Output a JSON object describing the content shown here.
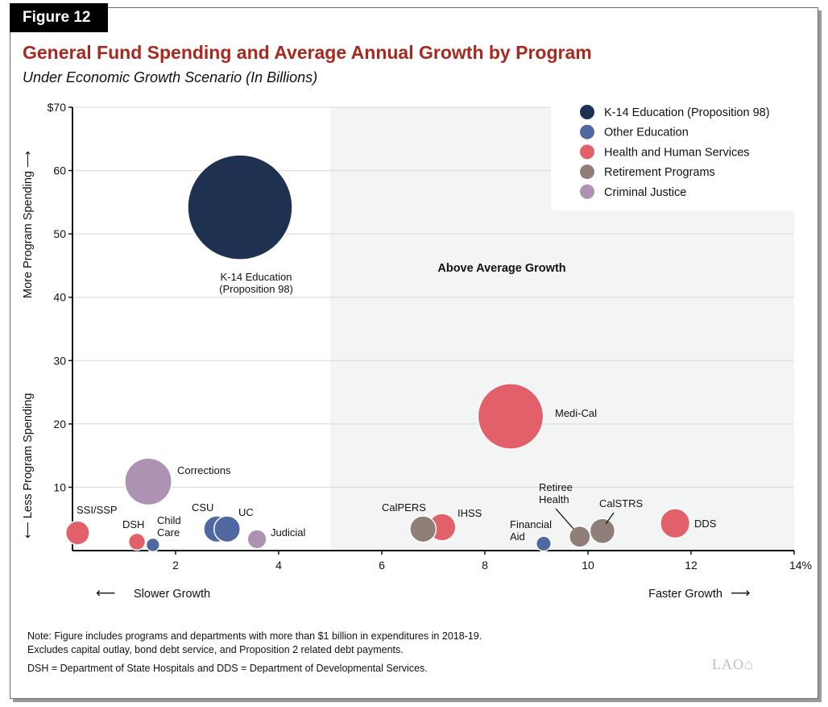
{
  "figure_tag": "Figure 12",
  "chart_data": {
    "type": "bubble",
    "title": "General Fund Spending and Average Annual Growth by Program",
    "subtitle": "Under Economic Growth Scenario (In Billions)",
    "xlim": [
      0,
      14
    ],
    "ylim": [
      0,
      70
    ],
    "x_ticks": [
      "2",
      "4",
      "6",
      "8",
      "10",
      "12",
      "14%"
    ],
    "x_tick_values": [
      2,
      4,
      6,
      8,
      10,
      12,
      14
    ],
    "y_ticks": [
      "10",
      "20",
      "30",
      "40",
      "50",
      "60",
      "$70"
    ],
    "y_tick_values": [
      10,
      20,
      30,
      40,
      50,
      60,
      70
    ],
    "x_direction_left": "Slower Growth",
    "x_direction_right": "Faster Growth",
    "y_direction_up": "More Program Spending",
    "y_direction_down": "Less Program Spending",
    "shaded_region": {
      "x_from": 5,
      "label": "Above Average Growth"
    },
    "grid": "horizontal",
    "legend_position": "top-right",
    "categories": [
      {
        "name": "K-14 Education (Proposition 98)",
        "color": "#1f3150"
      },
      {
        "name": "Other Education",
        "color": "#5068a0"
      },
      {
        "name": "Health and Human Services",
        "color": "#e2606a"
      },
      {
        "name": "Retirement Programs",
        "color": "#8f7f78"
      },
      {
        "name": "Criminal Justice",
        "color": "#ad92b3"
      }
    ],
    "points": [
      {
        "label": "K-14 Education\n(Proposition 98)",
        "category": 0,
        "x": 3.25,
        "y": 54.2
      },
      {
        "label": "Medi-Cal",
        "category": 2,
        "x": 8.5,
        "y": 21.2
      },
      {
        "label": "Corrections",
        "category": 4,
        "x": 1.47,
        "y": 10.9
      },
      {
        "label": "SSI/SSP",
        "category": 2,
        "x": 0.1,
        "y": 2.8
      },
      {
        "label": "DSH",
        "category": 2,
        "x": 1.25,
        "y": 1.4
      },
      {
        "label": "Child\nCare",
        "category": 1,
        "x": 1.56,
        "y": 0.9
      },
      {
        "label": "CSU",
        "category": 1,
        "x": 2.8,
        "y": 3.4
      },
      {
        "label": "UC",
        "category": 1,
        "x": 3.0,
        "y": 3.4
      },
      {
        "label": "Judicial",
        "category": 4,
        "x": 3.58,
        "y": 1.8
      },
      {
        "label": "IHSS",
        "category": 2,
        "x": 7.17,
        "y": 3.7
      },
      {
        "label": "CalPERS",
        "category": 3,
        "x": 6.8,
        "y": 3.4
      },
      {
        "label": "Financial\nAid",
        "category": 1,
        "x": 9.14,
        "y": 1.1
      },
      {
        "label": "Retiree\nHealth",
        "category": 3,
        "x": 9.84,
        "y": 2.2
      },
      {
        "label": "CalSTRS",
        "category": 3,
        "x": 10.28,
        "y": 3.1
      },
      {
        "label": "DDS",
        "category": 2,
        "x": 11.69,
        "y": 4.3
      }
    ]
  },
  "notes": [
    "Note: Figure includes programs and departments with more than $1 billion in expenditures in 2018-19.",
    "Excludes capital outlay, bond debt service, and Proposition 2 related debt payments.",
    "DSH = Department of State Hospitals and DDS = Department of Developmental Services."
  ],
  "logo": "LAO"
}
